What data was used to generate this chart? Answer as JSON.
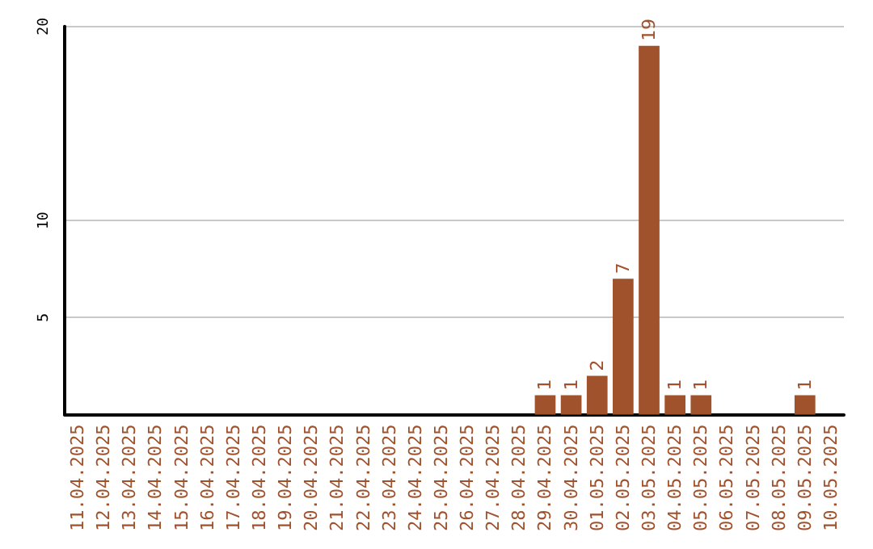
{
  "chart_data": {
    "type": "bar",
    "categories": [
      "11.04.2025",
      "12.04.2025",
      "13.04.2025",
      "14.04.2025",
      "15.04.2025",
      "16.04.2025",
      "17.04.2025",
      "18.04.2025",
      "19.04.2025",
      "20.04.2025",
      "21.04.2025",
      "22.04.2025",
      "23.04.2025",
      "24.04.2025",
      "25.04.2025",
      "26.04.2025",
      "27.04.2025",
      "28.04.2025",
      "29.04.2025",
      "30.04.2025",
      "01.05.2025",
      "02.05.2025",
      "03.05.2025",
      "04.05.2025",
      "05.05.2025",
      "06.05.2025",
      "07.05.2025",
      "08.05.2025",
      "09.05.2025",
      "10.05.2025"
    ],
    "values": [
      0,
      0,
      0,
      0,
      0,
      0,
      0,
      0,
      0,
      0,
      0,
      0,
      0,
      0,
      0,
      0,
      0,
      0,
      1,
      1,
      2,
      7,
      19,
      1,
      1,
      0,
      0,
      0,
      1,
      0
    ],
    "value_labels": [
      null,
      null,
      null,
      null,
      null,
      null,
      null,
      null,
      null,
      null,
      null,
      null,
      null,
      null,
      null,
      null,
      null,
      null,
      "1",
      "1",
      "2",
      "7",
      "19",
      "1",
      "1",
      null,
      null,
      null,
      "1",
      null
    ],
    "color": "#a0522d",
    "ylim": [
      0,
      20
    ],
    "yticks": [
      5,
      10,
      20
    ],
    "grid": "y"
  }
}
